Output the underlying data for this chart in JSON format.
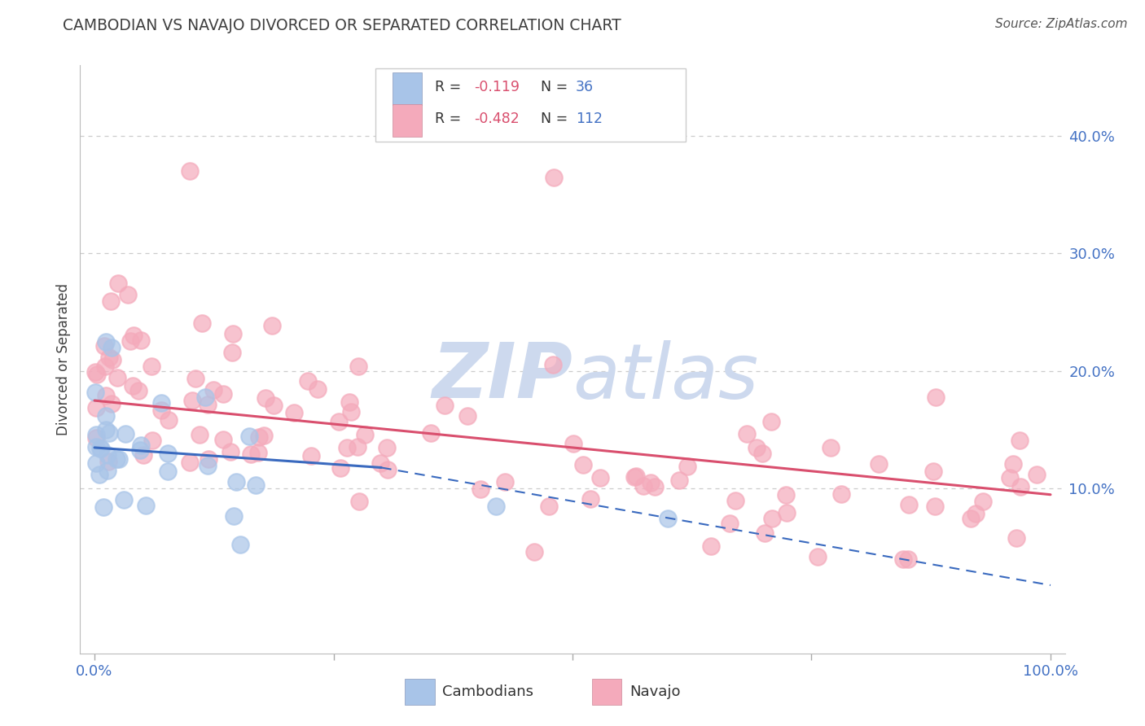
{
  "title": "CAMBODIAN VS NAVAJO DIVORCED OR SEPARATED CORRELATION CHART",
  "source": "Source: ZipAtlas.com",
  "ylabel": "Divorced or Separated",
  "legend_cambodian_R": "-0.119",
  "legend_cambodian_N": "36",
  "legend_navajo_R": "-0.482",
  "legend_navajo_N": "112",
  "cambodian_color": "#a8c4e8",
  "navajo_color": "#f4aabb",
  "trendline_cambodian_color": "#3a6abf",
  "trendline_navajo_color": "#d94f6e",
  "background_color": "#ffffff",
  "grid_color": "#cccccc",
  "axis_label_color": "#4472c4",
  "title_color": "#404040",
  "watermark_color": "#cdd9ee",
  "source_color": "#555555"
}
